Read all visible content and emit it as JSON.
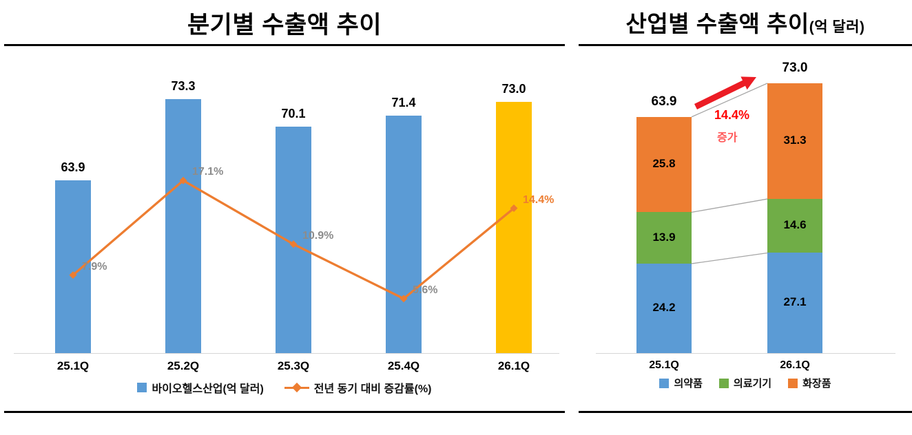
{
  "page": {
    "background": "#FFFFFF"
  },
  "chart_data": [
    {
      "id": "quarterly-export",
      "type": "bar+line",
      "title": "분기별 수출액 추이",
      "categories": [
        "25.1Q",
        "25.2Q",
        "25.3Q",
        "25.4Q",
        "26.1Q"
      ],
      "series": [
        {
          "key": "biohealth-exports",
          "name": "바이오헬스산업(억 달러)",
          "type": "bar",
          "values": [
            63.9,
            73.3,
            70.1,
            71.4,
            73.0
          ],
          "value_labels": [
            "63.9",
            "73.3",
            "70.1",
            "71.4",
            "73.0"
          ],
          "bar_colors": [
            "#5B9BD5",
            "#5B9BD5",
            "#5B9BD5",
            "#5B9BD5",
            "#FFC000"
          ]
        },
        {
          "key": "yoy-growth-rate",
          "name": "전년 동기 대비 증감률(%)",
          "type": "line",
          "axis": "secondary",
          "values": [
            7.9,
            17.1,
            10.9,
            5.6,
            14.4
          ],
          "point_labels": [
            "7.9%",
            "17.1%",
            "10.9%",
            "5.6%",
            "14.4%"
          ],
          "point_label_colors": [
            "#8C8C8C",
            "#8C8C8C",
            "#8C8C8C",
            "#8C8C8C",
            "#ED7D31"
          ],
          "color": "#ED7D31"
        }
      ],
      "ylim": [
        44,
        76
      ],
      "y2lim": [
        0.3,
        27.3
      ],
      "grid": false,
      "legend_position": "bottom"
    },
    {
      "id": "industry-export",
      "type": "stacked-bar",
      "title": "산업별 수출액 추이",
      "title_suffix": "(억 달러)",
      "categories": [
        "25.1Q",
        "26.1Q"
      ],
      "series": [
        {
          "key": "pharmaceuticals",
          "name": "의약품",
          "color": "#5B9BD5",
          "values": [
            24.2,
            27.1
          ],
          "labels": [
            "24.2",
            "27.1"
          ]
        },
        {
          "key": "medical-devices",
          "name": "의료기기",
          "color": "#70AD47",
          "values": [
            13.9,
            14.6
          ],
          "labels": [
            "13.9",
            "14.6"
          ]
        },
        {
          "key": "cosmetics",
          "name": "화장품",
          "color": "#ED7D31",
          "values": [
            25.8,
            31.3
          ],
          "labels": [
            "25.8",
            "31.3"
          ]
        }
      ],
      "totals": [
        63.9,
        73.0
      ],
      "total_labels": [
        "63.9",
        "73.0"
      ],
      "annotation": {
        "pct": "14.4%",
        "label": "증가",
        "pct_color": "#FF0000",
        "label_color": "#FF5A5A",
        "arrow_color": "#EC1C24",
        "connector_color": "#A6A6A6"
      },
      "ylim": [
        0,
        80
      ],
      "grid": false,
      "legend_position": "bottom"
    }
  ]
}
